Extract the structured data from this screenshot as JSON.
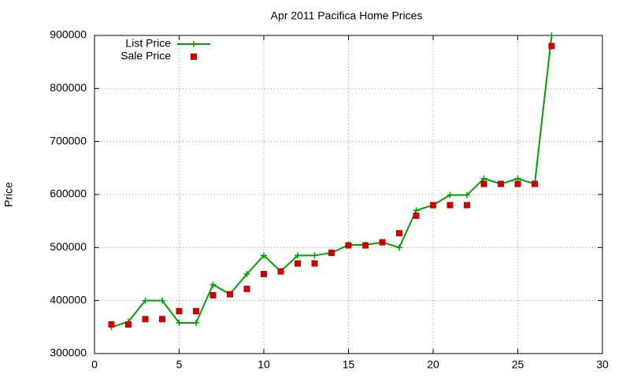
{
  "chart_data": {
    "type": "line",
    "title": "Apr 2011 Pacifica Home Prices",
    "y_label": "Price",
    "x": [
      1,
      2,
      3,
      4,
      5,
      6,
      7,
      8,
      9,
      10,
      11,
      12,
      13,
      14,
      15,
      16,
      17,
      18,
      19,
      20,
      21,
      22,
      23,
      24,
      25,
      26,
      27
    ],
    "series": [
      {
        "name": "List Price",
        "color": "#00a000",
        "style": "linespoints",
        "values": [
          350000,
          360000,
          400000,
          400000,
          358000,
          358000,
          430000,
          412000,
          450000,
          485000,
          455000,
          485000,
          485000,
          490000,
          505000,
          505000,
          510000,
          500000,
          570000,
          580000,
          599000,
          599000,
          630000,
          620000,
          630000,
          620000,
          900000
        ]
      },
      {
        "name": "Sale Price",
        "color": "#cc0000",
        "style": "points",
        "values": [
          355000,
          355000,
          365000,
          365000,
          380000,
          380000,
          410000,
          412000,
          422000,
          450000,
          455000,
          470000,
          470000,
          490000,
          504000,
          504000,
          510000,
          527000,
          560000,
          580000,
          580000,
          580000,
          620000,
          620000,
          620000,
          620000,
          880000
        ]
      }
    ],
    "xlim": [
      0,
      30
    ],
    "xticks": [
      0,
      5,
      10,
      15,
      20,
      25,
      30
    ],
    "ylim": [
      300000,
      900000
    ],
    "yticks": [
      300000,
      400000,
      500000,
      600000,
      700000,
      800000,
      900000
    ],
    "grid": true,
    "legend": "top-left"
  }
}
